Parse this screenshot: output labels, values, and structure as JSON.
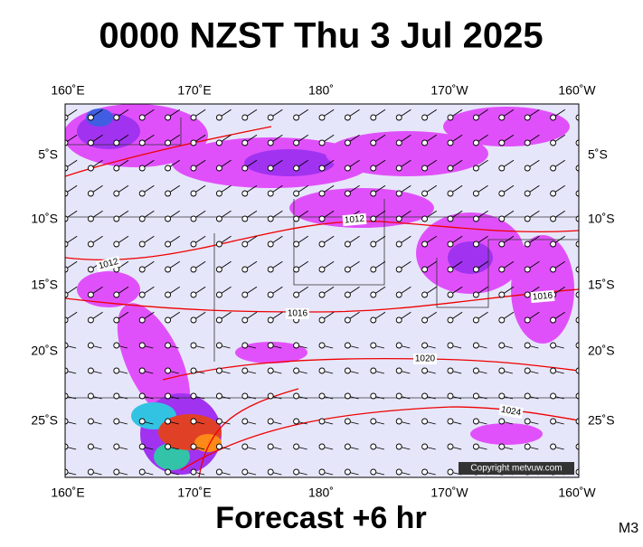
{
  "header": {
    "title": "0000 NZST Thu 3 Jul 2025"
  },
  "axes": {
    "top": [
      "160˚E",
      "170˚E",
      "180˚",
      "170˚W",
      "160˚W"
    ],
    "bottom": [
      "160˚E",
      "170˚E",
      "180˚",
      "170˚W",
      "160˚W"
    ],
    "left": [
      "5˚S",
      "10˚S",
      "15˚S",
      "20˚S",
      "25˚S"
    ],
    "right": [
      "5˚S",
      "10˚S",
      "15˚S",
      "20˚S",
      "25˚S"
    ]
  },
  "isobars": [
    "1012",
    "1012",
    "1016",
    "1016",
    "1020",
    "1024"
  ],
  "copyright": "Copyright metvuw.com",
  "footer": {
    "subtitle": "Forecast +6 hr",
    "code": "M3"
  }
}
